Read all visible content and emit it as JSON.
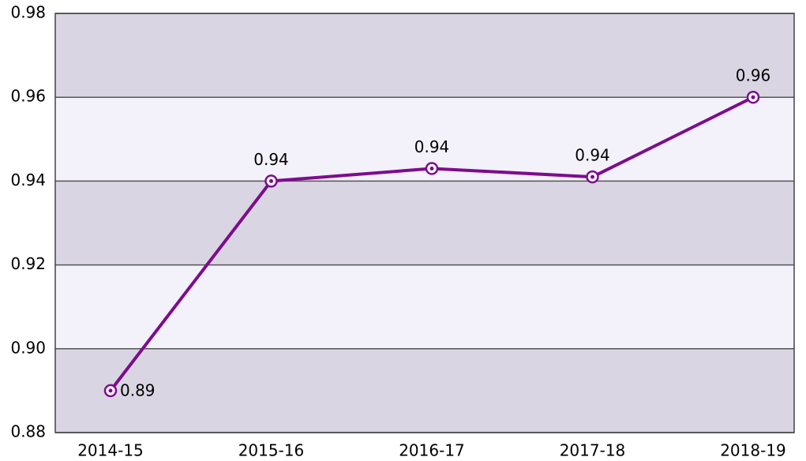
{
  "chart_data": {
    "type": "line",
    "categories": [
      "2014-15",
      "2015-16",
      "2016-17",
      "2017-18",
      "2018-19"
    ],
    "series": [
      {
        "color": "#7d0c8e",
        "values": [
          0.89,
          0.94,
          0.943,
          0.941,
          0.96
        ],
        "value_labels": [
          "0.89",
          "0.94",
          "0.94",
          "0.94",
          "0.96"
        ]
      }
    ],
    "ylim": [
      0.88,
      0.98
    ],
    "yticks": [
      0.88,
      {
        "value": 0.9,
        "label": "0.90"
      },
      0.92,
      0.94,
      0.96,
      0.98
    ],
    "grid": true,
    "band_colors": [
      "#d9d5e3",
      "#f3f1f9"
    ]
  }
}
